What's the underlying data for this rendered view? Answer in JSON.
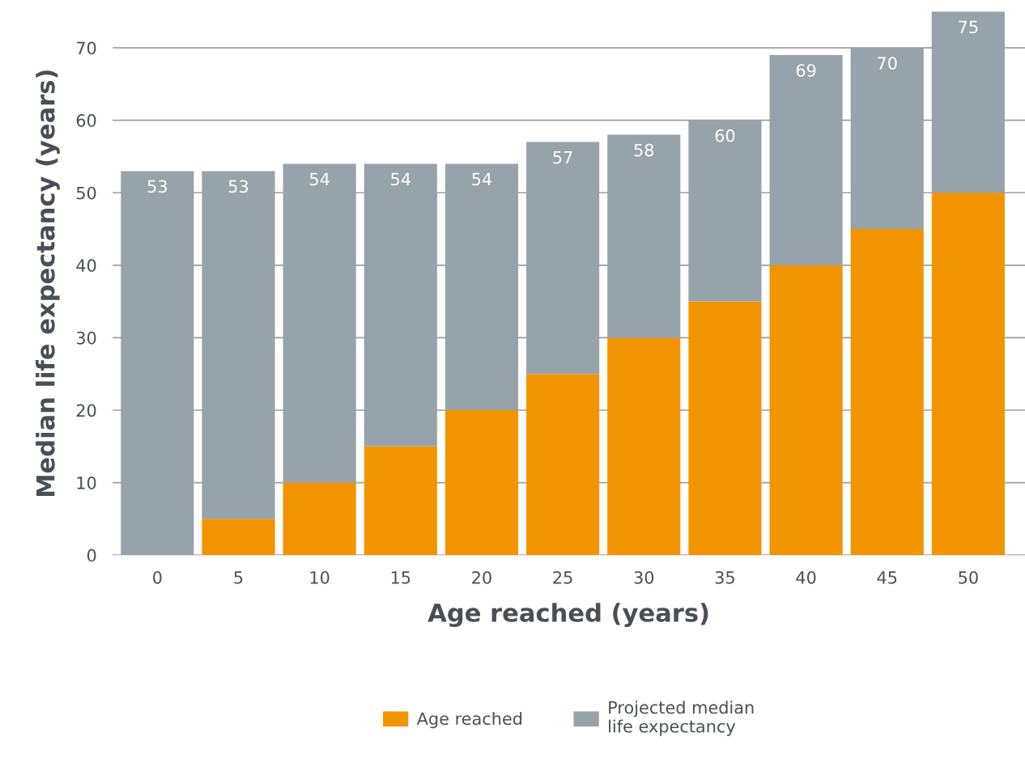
{
  "chart_data": {
    "type": "bar",
    "stacked": true,
    "xlabel": "Age reached (years)",
    "ylabel": "Median life expectancy (years)",
    "categories": [
      "0",
      "5",
      "10",
      "15",
      "20",
      "25",
      "30",
      "35",
      "40",
      "45",
      "50"
    ],
    "series": [
      {
        "name": "Age reached",
        "color": "#f29400",
        "values": [
          0,
          5,
          10,
          15,
          20,
          25,
          30,
          35,
          40,
          45,
          50
        ]
      },
      {
        "name": "Projected median\nlife expectancy",
        "color": "#97a3ab",
        "values": [
          53,
          48,
          44,
          39,
          34,
          32,
          28,
          25,
          29,
          25,
          25
        ]
      }
    ],
    "totals": [
      "53",
      "53",
      "54",
      "54",
      "54",
      "57",
      "58",
      "60",
      "69",
      "70",
      "75"
    ],
    "ylim": [
      0,
      75
    ],
    "yticks": [
      0,
      10,
      20,
      30,
      40,
      50,
      60,
      70
    ],
    "grid": "y",
    "legend": "bottom"
  }
}
